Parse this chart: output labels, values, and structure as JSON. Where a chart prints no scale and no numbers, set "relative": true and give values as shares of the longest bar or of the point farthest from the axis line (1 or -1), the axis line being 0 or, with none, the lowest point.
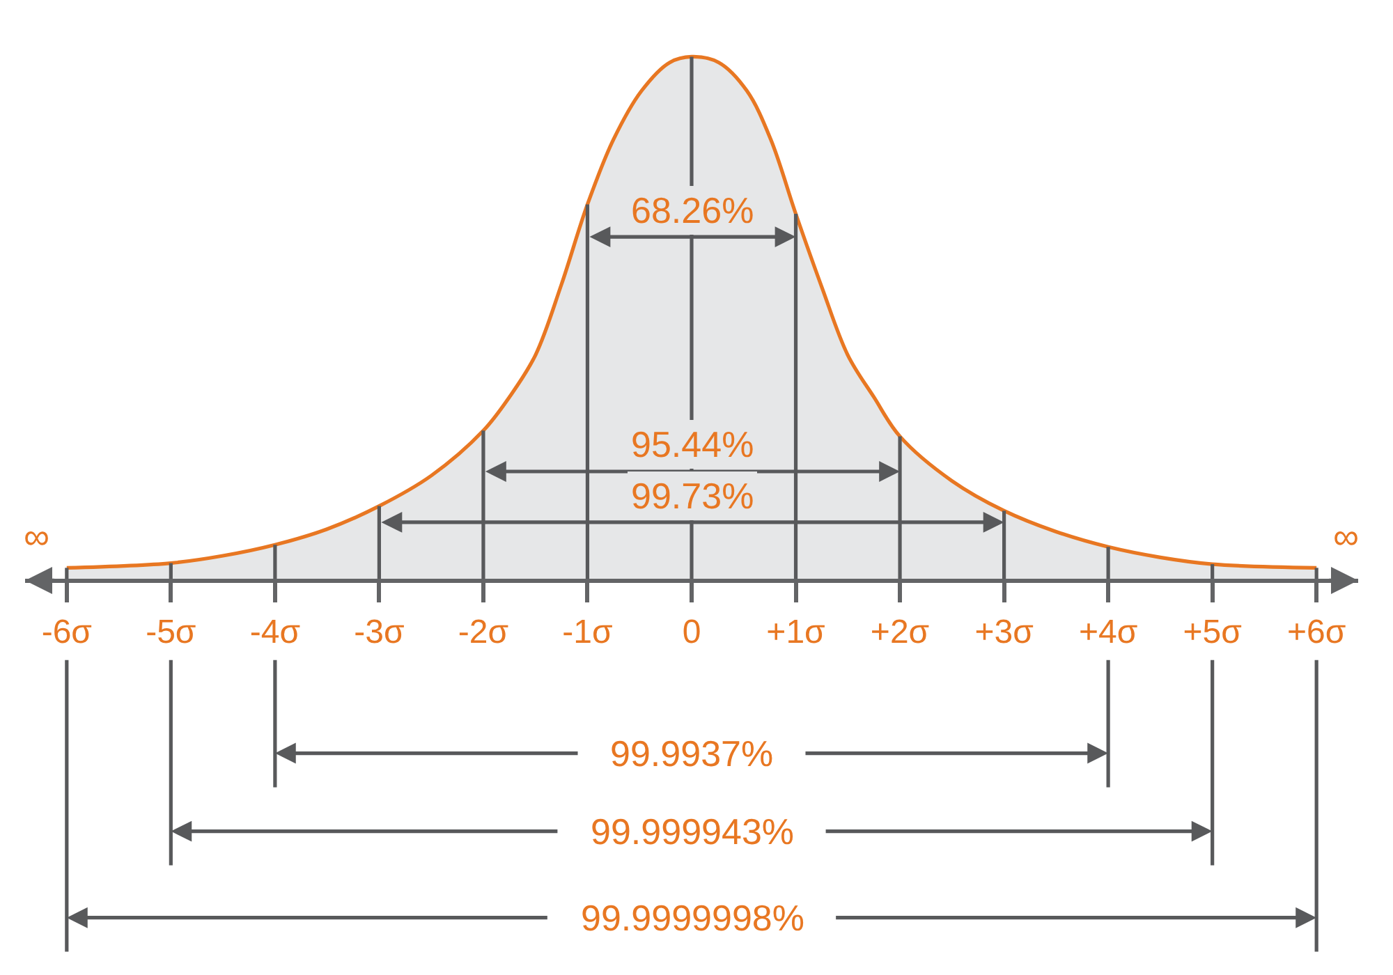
{
  "chart_data": {
    "type": "area",
    "relative": true,
    "series": [
      {
        "color": "#e87722",
        "x": [
          -6,
          -5,
          -4.5,
          -4,
          -3.5,
          -3,
          -2.5,
          -2,
          -1.75,
          -1.5,
          -1.25,
          -1,
          -0.75,
          -0.48,
          -0.21,
          0,
          0.26,
          0.53,
          0.76,
          1,
          1.25,
          1.5,
          1.75,
          2,
          2.5,
          3,
          3.5,
          4,
          4.5,
          5,
          6
        ],
        "values": [
          0.024,
          0.033,
          0.047,
          0.068,
          0.098,
          0.142,
          0.2,
          0.286,
          0.35,
          0.43,
          0.565,
          0.718,
          0.842,
          0.935,
          0.989,
          1.0,
          0.989,
          0.935,
          0.842,
          0.7,
          0.56,
          0.43,
          0.35,
          0.275,
          0.19,
          0.133,
          0.093,
          0.064,
          0.044,
          0.031,
          0.024
        ]
      },
      {
        "type": "bar",
        "color": "#58595b",
        "x": [
          -6,
          -5,
          -4,
          -3,
          -2,
          -1,
          0,
          1,
          2,
          3,
          4,
          5,
          6
        ],
        "values": [
          0.024,
          0.033,
          0.068,
          0.142,
          0.286,
          0.718,
          1.0,
          0.7,
          0.275,
          0.133,
          0.064,
          0.031,
          0.024
        ]
      }
    ],
    "xlim": [
      -6.4,
      6.4
    ],
    "xticks": [
      {
        "value": -6,
        "label": "-6σ"
      },
      {
        "value": -5,
        "label": "-5σ"
      },
      {
        "value": -4,
        "label": "-4σ"
      },
      {
        "value": -3,
        "label": "-3σ"
      },
      {
        "value": -2,
        "label": "-2σ"
      },
      {
        "value": -1,
        "label": "-1σ"
      },
      0,
      {
        "value": 1,
        "label": "+1σ"
      },
      {
        "value": 2,
        "label": "+2σ"
      },
      {
        "value": 3,
        "label": "+3σ"
      },
      {
        "value": 4,
        "label": "+4σ"
      },
      {
        "value": 5,
        "label": "+5σ"
      },
      {
        "value": 6,
        "label": "+6σ"
      }
    ],
    "annotations": [
      "68.26%",
      "95.44%",
      "99.73%",
      "∞",
      "∞",
      "99.9937%",
      "99.999943%",
      "99.9999998%"
    ]
  }
}
